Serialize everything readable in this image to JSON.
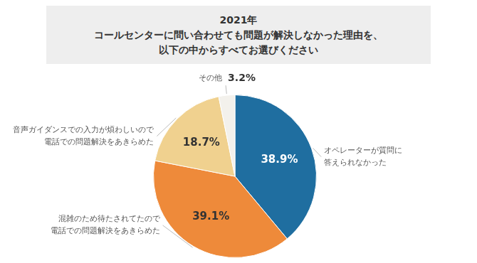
{
  "chart_data": {
    "type": "pie",
    "title": [
      "2021年",
      "コールセンターに問い合わせても問題が解決しなかった理由を、",
      "以下の中からすべてお選びください"
    ],
    "categories": [
      [
        "オペレーターが質問に",
        "答えられなかった"
      ],
      [
        "混雑のため待たされてたので",
        "電話での問題解決をあきらめた"
      ],
      [
        "音声ガイダンスでの入力が煩わしいので",
        "電話での問題解決をあきらめた"
      ],
      [
        "その他"
      ]
    ],
    "values": [
      38.9,
      39.1,
      18.7,
      3.2
    ],
    "value_labels": [
      "38.9%",
      "39.1%",
      "18.7%",
      "3.2%"
    ],
    "colors": [
      "#1f6ea0",
      "#ee8a3a",
      "#f0d18f",
      "#f3f1ec"
    ],
    "data_labels": true
  }
}
